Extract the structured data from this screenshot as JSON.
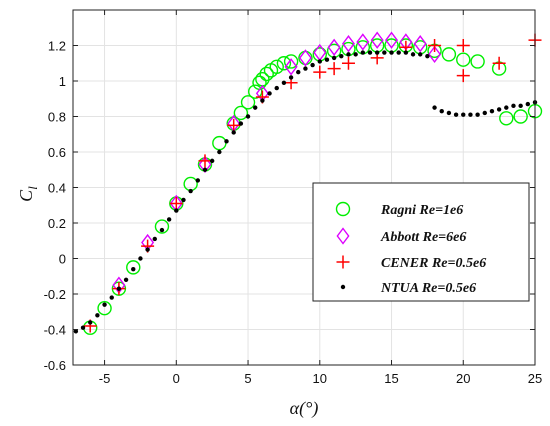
{
  "chart_data": {
    "type": "scatter",
    "xlabel": "α(°)",
    "ylabel": "C",
    "ylabel_sub": "l",
    "xlim": [
      -7.2,
      25
    ],
    "ylim": [
      -0.6,
      1.4
    ],
    "xticks": [
      -5,
      0,
      5,
      10,
      15,
      20,
      25
    ],
    "yticks": [
      -0.6,
      -0.4,
      -0.2,
      0,
      0.2,
      0.4,
      0.6,
      0.8,
      1,
      1.2
    ],
    "ytick_labels": [
      "-0.6",
      "-0.4",
      "-0.2",
      "0",
      "0.2",
      "0.4",
      "0.6",
      "0.8",
      "1",
      "1.2"
    ],
    "grid": true,
    "legend_position": "center-right",
    "series": [
      {
        "name": "Ragni Re=1e6",
        "marker": "circle",
        "color": "#00ee00",
        "points": [
          [
            -6,
            -0.39
          ],
          [
            -5,
            -0.28
          ],
          [
            -4,
            -0.17
          ],
          [
            -3,
            -0.05
          ],
          [
            -1,
            0.18
          ],
          [
            0,
            0.31
          ],
          [
            1,
            0.42
          ],
          [
            2,
            0.53
          ],
          [
            3,
            0.65
          ],
          [
            4,
            0.76
          ],
          [
            4.5,
            0.82
          ],
          [
            5,
            0.88
          ],
          [
            5.5,
            0.94
          ],
          [
            5.8,
            0.99
          ],
          [
            6,
            1.01
          ],
          [
            6.3,
            1.04
          ],
          [
            6.6,
            1.06
          ],
          [
            7,
            1.08
          ],
          [
            7.5,
            1.1
          ],
          [
            8,
            1.11
          ],
          [
            9,
            1.13
          ],
          [
            10,
            1.15
          ],
          [
            11,
            1.17
          ],
          [
            12,
            1.18
          ],
          [
            13,
            1.19
          ],
          [
            14,
            1.2
          ],
          [
            15,
            1.2
          ],
          [
            16,
            1.2
          ],
          [
            17,
            1.19
          ],
          [
            18,
            1.17
          ],
          [
            19,
            1.15
          ],
          [
            20,
            1.12
          ],
          [
            21,
            1.11
          ],
          [
            22.5,
            1.07
          ],
          [
            23,
            0.79
          ],
          [
            24,
            0.8
          ],
          [
            25,
            0.83
          ]
        ]
      },
      {
        "name": "Abbott Re=6e6",
        "marker": "diamond",
        "color": "#dd00ff",
        "points": [
          [
            -4,
            -0.15
          ],
          [
            -2,
            0.09
          ],
          [
            0,
            0.31
          ],
          [
            2,
            0.53
          ],
          [
            4,
            0.76
          ],
          [
            6,
            0.93
          ],
          [
            8,
            1.08
          ],
          [
            9,
            1.13
          ],
          [
            10,
            1.16
          ],
          [
            11,
            1.19
          ],
          [
            12,
            1.21
          ],
          [
            13,
            1.22
          ],
          [
            14,
            1.23
          ],
          [
            15,
            1.23
          ],
          [
            16,
            1.22
          ],
          [
            17,
            1.21
          ],
          [
            18,
            1.15
          ]
        ]
      },
      {
        "name": "CENER Re=0.5e6",
        "marker": "plus",
        "color": "#ff0000",
        "points": [
          [
            -6,
            -0.38
          ],
          [
            -4,
            -0.17
          ],
          [
            -2,
            0.07
          ],
          [
            0,
            0.31
          ],
          [
            2,
            0.55
          ],
          [
            4,
            0.75
          ],
          [
            6,
            0.91
          ],
          [
            8,
            0.99
          ],
          [
            10,
            1.05
          ],
          [
            11,
            1.07
          ],
          [
            12,
            1.1
          ],
          [
            14,
            1.13
          ],
          [
            16,
            1.19
          ],
          [
            18,
            1.2
          ],
          [
            20,
            1.2
          ],
          [
            20,
            1.03
          ],
          [
            22.5,
            1.1
          ],
          [
            25,
            1.23
          ]
        ]
      },
      {
        "name": "NTUA Re=0.5e6",
        "marker": "dot",
        "color": "#000000",
        "points": [
          [
            -7,
            -0.41
          ],
          [
            -6.5,
            -0.39
          ],
          [
            -6,
            -0.36
          ],
          [
            -5.5,
            -0.32
          ],
          [
            -5,
            -0.26
          ],
          [
            -4.5,
            -0.22
          ],
          [
            -4,
            -0.17
          ],
          [
            -3.5,
            -0.12
          ],
          [
            -3,
            -0.06
          ],
          [
            -2.5,
            0.0
          ],
          [
            -2,
            0.05
          ],
          [
            -1.5,
            0.11
          ],
          [
            -1,
            0.16
          ],
          [
            -0.5,
            0.22
          ],
          [
            0,
            0.27
          ],
          [
            0.5,
            0.33
          ],
          [
            1,
            0.38
          ],
          [
            1.5,
            0.44
          ],
          [
            2,
            0.5
          ],
          [
            2.5,
            0.55
          ],
          [
            3,
            0.6
          ],
          [
            3.5,
            0.66
          ],
          [
            4,
            0.71
          ],
          [
            4.5,
            0.76
          ],
          [
            5,
            0.8
          ],
          [
            5.5,
            0.85
          ],
          [
            6,
            0.89
          ],
          [
            6.5,
            0.93
          ],
          [
            7,
            0.96
          ],
          [
            7.5,
            0.99
          ],
          [
            8,
            1.02
          ],
          [
            8.5,
            1.05
          ],
          [
            9,
            1.07
          ],
          [
            9.5,
            1.09
          ],
          [
            10,
            1.11
          ],
          [
            10.5,
            1.12
          ],
          [
            11,
            1.13
          ],
          [
            11.5,
            1.14
          ],
          [
            12,
            1.15
          ],
          [
            12.5,
            1.15
          ],
          [
            13,
            1.16
          ],
          [
            13.5,
            1.16
          ],
          [
            14,
            1.16
          ],
          [
            14.5,
            1.16
          ],
          [
            15,
            1.16
          ],
          [
            15.5,
            1.16
          ],
          [
            16,
            1.16
          ],
          [
            16.5,
            1.15
          ],
          [
            17,
            1.15
          ],
          [
            17.5,
            1.14
          ],
          [
            18,
            0.85
          ],
          [
            18.5,
            0.83
          ],
          [
            19,
            0.82
          ],
          [
            19.5,
            0.81
          ],
          [
            20,
            0.81
          ],
          [
            20.5,
            0.81
          ],
          [
            21,
            0.81
          ],
          [
            21.5,
            0.82
          ],
          [
            22,
            0.83
          ],
          [
            22.5,
            0.84
          ],
          [
            23,
            0.85
          ],
          [
            23.5,
            0.86
          ],
          [
            24,
            0.86
          ],
          [
            24.5,
            0.87
          ],
          [
            25,
            0.88
          ]
        ]
      }
    ]
  }
}
